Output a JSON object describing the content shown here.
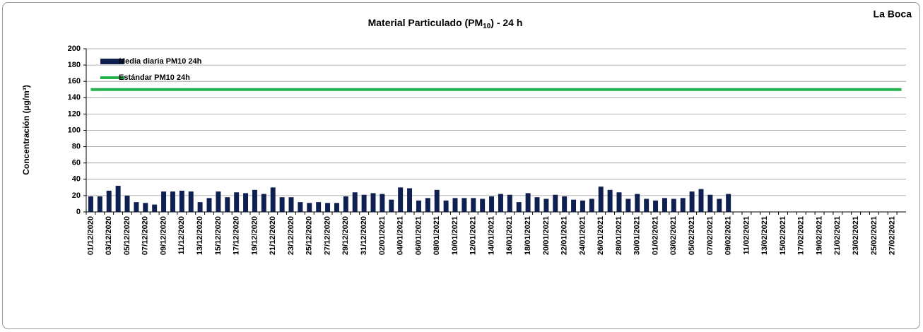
{
  "chart_data": {
    "type": "bar",
    "title_parts": [
      "Material Particulado (PM",
      "10",
      ") - 24 h"
    ],
    "annotation": "La Boca",
    "y_label": "Concentración (µg/m³)",
    "categories": [
      "01/12/2020",
      null,
      "03/12/2020",
      null,
      "05/12/2020",
      null,
      "07/12/2020",
      null,
      "09/12/2020",
      null,
      "11/12/2020",
      null,
      "13/12/2020",
      null,
      "15/12/2020",
      null,
      "17/12/2020",
      null,
      "19/12/2020",
      null,
      "21/12/2020",
      null,
      "23/12/2020",
      null,
      "25/12/2020",
      null,
      "27/12/2020",
      null,
      "29/12/2020",
      null,
      "31/12/2020",
      null,
      "02/01/2021",
      null,
      "04/01/2021",
      null,
      "06/01/2021",
      null,
      "08/01/2021",
      null,
      "10/01/2021",
      null,
      "12/01/2021",
      null,
      "14/01/2021",
      null,
      "16/01/2021",
      null,
      "18/01/2021",
      null,
      "20/01/2021",
      null,
      "22/01/2021",
      null,
      "24/01/2021",
      null,
      "26/01/2021",
      null,
      "28/01/2021",
      null,
      "30/01/2021",
      null,
      "01/02/2021",
      null,
      "03/02/2021",
      null,
      "05/02/2021",
      null,
      "07/02/2021",
      null,
      "09/02/2021",
      null,
      "11/02/2021",
      null,
      "13/02/2021",
      null,
      "15/02/2021",
      null,
      "17/02/2021",
      null,
      "19/02/2021",
      null,
      "21/02/2021",
      null,
      "23/02/2021",
      null,
      "25/02/2021",
      null,
      "27/02/2021",
      null
    ],
    "series": [
      {
        "name": "Media diaria PM10 24h",
        "color": "#0f1f4f",
        "kind": "bar",
        "values": [
          19,
          19,
          26,
          32,
          20,
          12,
          11,
          9,
          25,
          25,
          26,
          25,
          12,
          17,
          25,
          18,
          24,
          23,
          27,
          22,
          30,
          18,
          18,
          12,
          11,
          12,
          11,
          11,
          19,
          24,
          21,
          23,
          22,
          15,
          30,
          29,
          14,
          17,
          27,
          14,
          17,
          17,
          17,
          16,
          19,
          22,
          21,
          12,
          23,
          18,
          16,
          21,
          19,
          15,
          14,
          16,
          31,
          27,
          24,
          16,
          22,
          16,
          14,
          17,
          16,
          17,
          25,
          28,
          21,
          16,
          22,
          null,
          null,
          null,
          null,
          null,
          null,
          null,
          null,
          null,
          null,
          null,
          null,
          null,
          null,
          null,
          null,
          null,
          null,
          null
        ]
      },
      {
        "name": "Estándar PM10 24h",
        "color": "#22b14c",
        "kind": "line",
        "values": [
          150,
          150,
          150,
          150,
          150,
          150,
          150,
          150,
          150,
          150,
          150,
          150,
          150,
          150,
          150,
          150,
          150,
          150,
          150,
          150,
          150,
          150,
          150,
          150,
          150,
          150,
          150,
          150,
          150,
          150,
          150,
          150,
          150,
          150,
          150,
          150,
          150,
          150,
          150,
          150,
          150,
          150,
          150,
          150,
          150,
          150,
          150,
          150,
          150,
          150,
          150,
          150,
          150,
          150,
          150,
          150,
          150,
          150,
          150,
          150,
          150,
          150,
          150,
          150,
          150,
          150,
          150,
          150,
          150,
          150,
          150,
          150,
          150,
          150,
          150,
          150,
          150,
          150,
          150,
          150,
          150,
          150,
          150,
          150,
          150,
          150,
          150,
          150,
          150,
          150
        ]
      }
    ],
    "ylim": [
      0,
      200
    ],
    "yticks": [
      0,
      20,
      40,
      60,
      80,
      100,
      120,
      140,
      160,
      180,
      200
    ],
    "grid": true,
    "legend": "upper left"
  }
}
